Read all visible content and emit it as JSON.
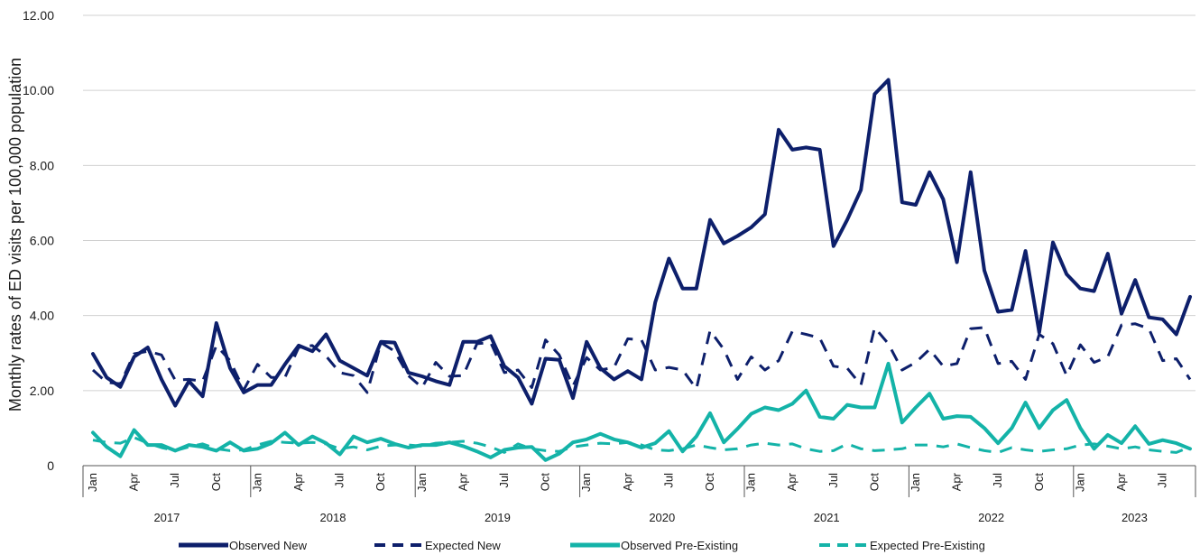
{
  "chart_data": {
    "type": "line",
    "title": "",
    "xlabel": "",
    "ylabel": "Monthly rates of ED visits per 100,000 population",
    "ylim": [
      0,
      12
    ],
    "yticks": [
      "0",
      "2.00",
      "4.00",
      "6.00",
      "8.00",
      "10.00",
      "12.00"
    ],
    "ytick_values": [
      0,
      2,
      4,
      6,
      8,
      10,
      12
    ],
    "grid": "horizontal",
    "legend_position": "bottom",
    "years": [
      "2017",
      "2018",
      "2019",
      "2020",
      "2021",
      "2022",
      "2023"
    ],
    "month_labels": [
      "Jan",
      "Apr",
      "Jul",
      "Oct"
    ],
    "x_start": "2017-01",
    "x_end": "2023-09",
    "series": [
      {
        "name": "Observed New",
        "color": "#0d1f6b",
        "style": "solid",
        "values": [
          2.98,
          2.35,
          2.1,
          2.9,
          3.15,
          2.3,
          1.6,
          2.25,
          1.85,
          3.8,
          2.6,
          1.95,
          2.15,
          2.15,
          2.7,
          3.2,
          3.05,
          3.5,
          2.8,
          2.6,
          2.4,
          3.3,
          3.28,
          2.48,
          2.38,
          2.25,
          2.15,
          3.3,
          3.3,
          3.45,
          2.65,
          2.35,
          1.65,
          2.85,
          2.82,
          1.8,
          3.3,
          2.6,
          2.3,
          2.52,
          2.3,
          4.35,
          5.52,
          4.72,
          4.72,
          6.55,
          5.92,
          6.12,
          6.35,
          6.7,
          8.95,
          8.42,
          8.48,
          8.42,
          5.85,
          6.55,
          7.35,
          9.9,
          10.28,
          7.02,
          6.95,
          7.82,
          7.1,
          5.42,
          7.82,
          5.2,
          4.1,
          4.15,
          5.72,
          3.55,
          5.95,
          5.1,
          4.72,
          4.65,
          5.65,
          4.05,
          4.95,
          3.95,
          3.9,
          3.5,
          4.5
        ]
      },
      {
        "name": "Expected New",
        "color": "#0d1f6b",
        "style": "dashed",
        "values": [
          2.55,
          2.22,
          2.18,
          2.98,
          3.05,
          2.95,
          2.28,
          2.3,
          2.25,
          3.2,
          2.8,
          2.02,
          2.7,
          2.35,
          2.35,
          3.15,
          3.2,
          2.92,
          2.48,
          2.4,
          1.95,
          3.28,
          3.05,
          2.4,
          2.08,
          2.75,
          2.38,
          2.4,
          3.25,
          3.28,
          2.48,
          2.55,
          2.08,
          3.35,
          2.95,
          2.12,
          2.88,
          2.55,
          2.62,
          3.38,
          3.35,
          2.55,
          2.62,
          2.55,
          2.05,
          3.6,
          3.1,
          2.3,
          2.9,
          2.55,
          2.8,
          3.58,
          3.5,
          3.4,
          2.65,
          2.6,
          2.15,
          3.68,
          3.25,
          2.55,
          2.75,
          3.1,
          2.65,
          2.72,
          3.65,
          3.68,
          2.72,
          2.78,
          2.3,
          3.5,
          3.25,
          2.4,
          3.22,
          2.75,
          2.9,
          3.75,
          3.78,
          3.65,
          2.8,
          2.85,
          2.3
        ]
      },
      {
        "name": "Observed Pre-Existing",
        "color": "#14b3a8",
        "style": "solid",
        "values": [
          0.88,
          0.5,
          0.25,
          0.95,
          0.55,
          0.55,
          0.4,
          0.55,
          0.5,
          0.4,
          0.62,
          0.4,
          0.45,
          0.6,
          0.88,
          0.55,
          0.78,
          0.6,
          0.3,
          0.78,
          0.62,
          0.72,
          0.58,
          0.48,
          0.55,
          0.55,
          0.62,
          0.52,
          0.38,
          0.22,
          0.42,
          0.48,
          0.5,
          0.15,
          0.32,
          0.62,
          0.7,
          0.85,
          0.7,
          0.62,
          0.48,
          0.6,
          0.92,
          0.38,
          0.78,
          1.4,
          0.62,
          0.98,
          1.38,
          1.55,
          1.48,
          1.65,
          2.0,
          1.3,
          1.25,
          1.62,
          1.55,
          1.55,
          2.72,
          1.15,
          1.55,
          1.92,
          1.25,
          1.32,
          1.3,
          1.0,
          0.6,
          1.0,
          1.68,
          1.0,
          1.48,
          1.75,
          1.0,
          0.45,
          0.82,
          0.6,
          1.05,
          0.58,
          0.68,
          0.6,
          0.45
        ]
      },
      {
        "name": "Expected Pre-Existing",
        "color": "#14b3a8",
        "style": "dashed",
        "values": [
          0.68,
          0.62,
          0.6,
          0.75,
          0.6,
          0.48,
          0.4,
          0.5,
          0.58,
          0.45,
          0.4,
          0.42,
          0.55,
          0.65,
          0.62,
          0.6,
          0.62,
          0.58,
          0.45,
          0.5,
          0.42,
          0.52,
          0.55,
          0.55,
          0.52,
          0.6,
          0.62,
          0.65,
          0.6,
          0.5,
          0.35,
          0.58,
          0.45,
          0.4,
          0.38,
          0.5,
          0.55,
          0.6,
          0.58,
          0.62,
          0.55,
          0.42,
          0.4,
          0.45,
          0.55,
          0.48,
          0.42,
          0.45,
          0.55,
          0.6,
          0.55,
          0.58,
          0.45,
          0.38,
          0.4,
          0.58,
          0.45,
          0.4,
          0.42,
          0.45,
          0.55,
          0.55,
          0.5,
          0.58,
          0.48,
          0.4,
          0.35,
          0.48,
          0.42,
          0.38,
          0.42,
          0.45,
          0.55,
          0.58,
          0.52,
          0.45,
          0.5,
          0.42,
          0.38,
          0.35,
          0.5
        ]
      }
    ]
  }
}
